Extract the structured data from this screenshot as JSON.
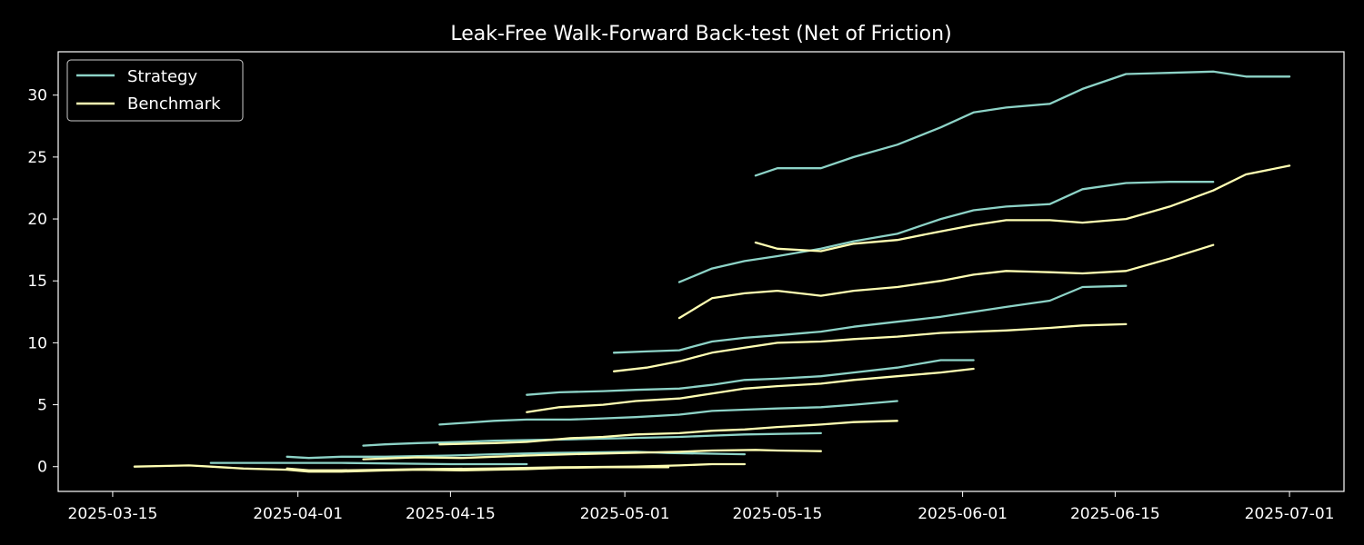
{
  "chart_data": {
    "type": "line",
    "title": "Leak-Free Walk-Forward Back-test (Net of Friction)",
    "xlabel": "",
    "ylabel": "",
    "xlim": [
      "2025-03-10",
      "2025-07-06"
    ],
    "ylim": [
      -2,
      33.5
    ],
    "x_ticks": [
      "2025-03-15",
      "2025-04-01",
      "2025-04-15",
      "2025-05-01",
      "2025-05-15",
      "2025-06-01",
      "2025-06-15",
      "2025-07-01"
    ],
    "y_ticks": [
      0,
      5,
      10,
      15,
      20,
      25,
      30
    ],
    "grid": false,
    "legend": {
      "position": "top-left",
      "entries": [
        {
          "name": "Strategy",
          "color": "#8dd3c7"
        },
        {
          "name": "Benchmark",
          "color": "#ffffb3"
        }
      ]
    },
    "colors": {
      "Strategy": "#8dd3c7",
      "Benchmark": "#ffffb3",
      "background": "#000000",
      "axes": "#ffffff"
    },
    "series": [
      {
        "name": "Strategy",
        "points": [
          [
            "2025-03-24",
            0.3
          ],
          [
            "2025-04-05",
            0.3
          ],
          [
            "2025-04-15",
            0.2
          ],
          [
            "2025-04-22",
            0.2
          ]
        ]
      },
      {
        "name": "Benchmark",
        "points": [
          [
            "2025-03-17",
            0.0
          ],
          [
            "2025-03-22",
            0.1
          ],
          [
            "2025-03-24",
            0.0
          ],
          [
            "2025-03-27",
            -0.15
          ],
          [
            "2025-03-31",
            -0.25
          ],
          [
            "2025-04-02",
            -0.4
          ],
          [
            "2025-04-05",
            -0.4
          ],
          [
            "2025-04-09",
            -0.3
          ],
          [
            "2025-04-12",
            -0.25
          ],
          [
            "2025-04-16",
            -0.3
          ],
          [
            "2025-04-19",
            -0.25
          ],
          [
            "2025-04-22",
            -0.2
          ],
          [
            "2025-04-25",
            -0.1
          ],
          [
            "2025-04-29",
            -0.05
          ],
          [
            "2025-05-02",
            -0.05
          ],
          [
            "2025-05-05",
            -0.05
          ]
        ]
      },
      {
        "name": "Strategy",
        "points": [
          [
            "2025-03-31",
            0.8
          ],
          [
            "2025-04-02",
            0.7
          ],
          [
            "2025-04-05",
            0.8
          ],
          [
            "2025-04-09",
            0.8
          ],
          [
            "2025-04-15",
            0.9
          ],
          [
            "2025-04-19",
            1.0
          ],
          [
            "2025-04-24",
            1.1
          ],
          [
            "2025-05-02",
            1.2
          ],
          [
            "2025-05-05",
            1.1
          ],
          [
            "2025-05-12",
            1.0
          ]
        ]
      },
      {
        "name": "Benchmark",
        "points": [
          [
            "2025-03-31",
            -0.15
          ],
          [
            "2025-04-02",
            -0.3
          ],
          [
            "2025-04-05",
            -0.3
          ],
          [
            "2025-04-09",
            -0.25
          ],
          [
            "2025-04-12",
            -0.2
          ],
          [
            "2025-04-19",
            -0.15
          ],
          [
            "2025-04-25",
            -0.05
          ],
          [
            "2025-05-02",
            0.0
          ],
          [
            "2025-05-06",
            0.1
          ],
          [
            "2025-05-09",
            0.2
          ],
          [
            "2025-05-12",
            0.2
          ]
        ]
      },
      {
        "name": "Strategy",
        "points": [
          [
            "2025-04-07",
            1.7
          ],
          [
            "2025-04-09",
            1.8
          ],
          [
            "2025-04-12",
            1.9
          ],
          [
            "2025-04-16",
            2.0
          ],
          [
            "2025-04-19",
            2.1
          ],
          [
            "2025-04-26",
            2.2
          ],
          [
            "2025-05-01",
            2.3
          ],
          [
            "2025-05-06",
            2.4
          ],
          [
            "2025-05-09",
            2.5
          ],
          [
            "2025-05-12",
            2.6
          ],
          [
            "2025-05-19",
            2.7
          ]
        ]
      },
      {
        "name": "Benchmark",
        "points": [
          [
            "2025-04-07",
            0.6
          ],
          [
            "2025-04-12",
            0.75
          ],
          [
            "2025-04-16",
            0.7
          ],
          [
            "2025-04-19",
            0.8
          ],
          [
            "2025-04-22",
            0.9
          ],
          [
            "2025-04-26",
            1.0
          ],
          [
            "2025-05-01",
            1.1
          ],
          [
            "2025-05-06",
            1.2
          ],
          [
            "2025-05-09",
            1.3
          ],
          [
            "2025-05-13",
            1.35
          ],
          [
            "2025-05-15",
            1.3
          ],
          [
            "2025-05-19",
            1.25
          ]
        ]
      },
      {
        "name": "Strategy",
        "points": [
          [
            "2025-04-14",
            3.4
          ],
          [
            "2025-04-19",
            3.7
          ],
          [
            "2025-04-22",
            3.8
          ],
          [
            "2025-04-26",
            3.8
          ],
          [
            "2025-04-29",
            3.9
          ],
          [
            "2025-05-02",
            4.0
          ],
          [
            "2025-05-06",
            4.2
          ],
          [
            "2025-05-09",
            4.5
          ],
          [
            "2025-05-12",
            4.6
          ],
          [
            "2025-05-15",
            4.7
          ],
          [
            "2025-05-19",
            4.8
          ],
          [
            "2025-05-22",
            5.0
          ],
          [
            "2025-05-26",
            5.3
          ]
        ]
      },
      {
        "name": "Benchmark",
        "points": [
          [
            "2025-04-14",
            1.8
          ],
          [
            "2025-04-19",
            1.9
          ],
          [
            "2025-04-22",
            2.0
          ],
          [
            "2025-04-26",
            2.3
          ],
          [
            "2025-04-29",
            2.4
          ],
          [
            "2025-05-02",
            2.6
          ],
          [
            "2025-05-06",
            2.7
          ],
          [
            "2025-05-09",
            2.9
          ],
          [
            "2025-05-12",
            3.0
          ],
          [
            "2025-05-15",
            3.2
          ],
          [
            "2025-05-19",
            3.4
          ],
          [
            "2025-05-22",
            3.6
          ],
          [
            "2025-05-26",
            3.7
          ]
        ]
      },
      {
        "name": "Strategy",
        "points": [
          [
            "2025-04-22",
            5.8
          ],
          [
            "2025-04-25",
            6.0
          ],
          [
            "2025-04-29",
            6.1
          ],
          [
            "2025-05-02",
            6.2
          ],
          [
            "2025-05-06",
            6.3
          ],
          [
            "2025-05-09",
            6.6
          ],
          [
            "2025-05-12",
            7.0
          ],
          [
            "2025-05-15",
            7.1
          ],
          [
            "2025-05-19",
            7.3
          ],
          [
            "2025-05-22",
            7.6
          ],
          [
            "2025-05-26",
            8.0
          ],
          [
            "2025-05-30",
            8.6
          ],
          [
            "2025-06-02",
            8.6
          ]
        ]
      },
      {
        "name": "Benchmark",
        "points": [
          [
            "2025-04-22",
            4.4
          ],
          [
            "2025-04-25",
            4.8
          ],
          [
            "2025-04-29",
            5.0
          ],
          [
            "2025-05-02",
            5.3
          ],
          [
            "2025-05-06",
            5.5
          ],
          [
            "2025-05-09",
            5.9
          ],
          [
            "2025-05-12",
            6.3
          ],
          [
            "2025-05-15",
            6.5
          ],
          [
            "2025-05-19",
            6.7
          ],
          [
            "2025-05-22",
            7.0
          ],
          [
            "2025-05-26",
            7.3
          ],
          [
            "2025-05-30",
            7.6
          ],
          [
            "2025-06-02",
            7.9
          ]
        ]
      },
      {
        "name": "Strategy",
        "points": [
          [
            "2025-04-30",
            9.2
          ],
          [
            "2025-05-03",
            9.3
          ],
          [
            "2025-05-06",
            9.4
          ],
          [
            "2025-05-09",
            10.1
          ],
          [
            "2025-05-12",
            10.4
          ],
          [
            "2025-05-15",
            10.6
          ],
          [
            "2025-05-19",
            10.9
          ],
          [
            "2025-05-22",
            11.3
          ],
          [
            "2025-05-26",
            11.7
          ],
          [
            "2025-05-30",
            12.1
          ],
          [
            "2025-06-05",
            12.9
          ],
          [
            "2025-06-09",
            13.4
          ],
          [
            "2025-06-12",
            14.5
          ],
          [
            "2025-06-16",
            14.6
          ]
        ]
      },
      {
        "name": "Benchmark",
        "points": [
          [
            "2025-04-30",
            7.7
          ],
          [
            "2025-05-03",
            8.0
          ],
          [
            "2025-05-06",
            8.5
          ],
          [
            "2025-05-09",
            9.2
          ],
          [
            "2025-05-12",
            9.6
          ],
          [
            "2025-05-15",
            10.0
          ],
          [
            "2025-05-19",
            10.1
          ],
          [
            "2025-05-22",
            10.3
          ],
          [
            "2025-05-26",
            10.5
          ],
          [
            "2025-05-30",
            10.8
          ],
          [
            "2025-06-05",
            11.0
          ],
          [
            "2025-06-09",
            11.2
          ],
          [
            "2025-06-12",
            11.4
          ],
          [
            "2025-06-16",
            11.5
          ]
        ]
      },
      {
        "name": "Strategy",
        "points": [
          [
            "2025-05-06",
            14.9
          ],
          [
            "2025-05-09",
            16.0
          ],
          [
            "2025-05-12",
            16.6
          ],
          [
            "2025-05-15",
            17.0
          ],
          [
            "2025-05-19",
            17.6
          ],
          [
            "2025-05-22",
            18.2
          ],
          [
            "2025-05-26",
            18.8
          ],
          [
            "2025-05-30",
            20.0
          ],
          [
            "2025-06-02",
            20.7
          ],
          [
            "2025-06-05",
            21.0
          ],
          [
            "2025-06-09",
            21.2
          ],
          [
            "2025-06-12",
            22.4
          ],
          [
            "2025-06-16",
            22.9
          ],
          [
            "2025-06-20",
            23.0
          ],
          [
            "2025-06-24",
            23.0
          ]
        ]
      },
      {
        "name": "Benchmark",
        "points": [
          [
            "2025-05-06",
            12.0
          ],
          [
            "2025-05-09",
            13.6
          ],
          [
            "2025-05-12",
            14.0
          ],
          [
            "2025-05-15",
            14.2
          ],
          [
            "2025-05-19",
            13.8
          ],
          [
            "2025-05-22",
            14.2
          ],
          [
            "2025-05-26",
            14.5
          ],
          [
            "2025-05-30",
            15.0
          ],
          [
            "2025-06-02",
            15.5
          ],
          [
            "2025-06-05",
            15.8
          ],
          [
            "2025-06-09",
            15.7
          ],
          [
            "2025-06-12",
            15.6
          ],
          [
            "2025-06-16",
            15.8
          ],
          [
            "2025-06-20",
            16.8
          ],
          [
            "2025-06-24",
            17.9
          ]
        ]
      },
      {
        "name": "Strategy",
        "points": [
          [
            "2025-05-13",
            23.5
          ],
          [
            "2025-05-15",
            24.1
          ],
          [
            "2025-05-19",
            24.1
          ],
          [
            "2025-05-22",
            25.0
          ],
          [
            "2025-05-26",
            26.0
          ],
          [
            "2025-05-30",
            27.4
          ],
          [
            "2025-06-02",
            28.6
          ],
          [
            "2025-06-05",
            29.0
          ],
          [
            "2025-06-09",
            29.3
          ],
          [
            "2025-06-12",
            30.5
          ],
          [
            "2025-06-16",
            31.7
          ],
          [
            "2025-06-20",
            31.8
          ],
          [
            "2025-06-24",
            31.9
          ],
          [
            "2025-06-27",
            31.5
          ],
          [
            "2025-07-01",
            31.5
          ]
        ]
      },
      {
        "name": "Benchmark",
        "points": [
          [
            "2025-05-13",
            18.1
          ],
          [
            "2025-05-15",
            17.6
          ],
          [
            "2025-05-19",
            17.4
          ],
          [
            "2025-05-22",
            18.0
          ],
          [
            "2025-05-26",
            18.3
          ],
          [
            "2025-05-30",
            19.0
          ],
          [
            "2025-06-02",
            19.5
          ],
          [
            "2025-06-05",
            19.9
          ],
          [
            "2025-06-09",
            19.9
          ],
          [
            "2025-06-12",
            19.7
          ],
          [
            "2025-06-16",
            20.0
          ],
          [
            "2025-06-20",
            21.0
          ],
          [
            "2025-06-24",
            22.3
          ],
          [
            "2025-06-27",
            23.6
          ],
          [
            "2025-07-01",
            24.3
          ]
        ]
      }
    ]
  }
}
